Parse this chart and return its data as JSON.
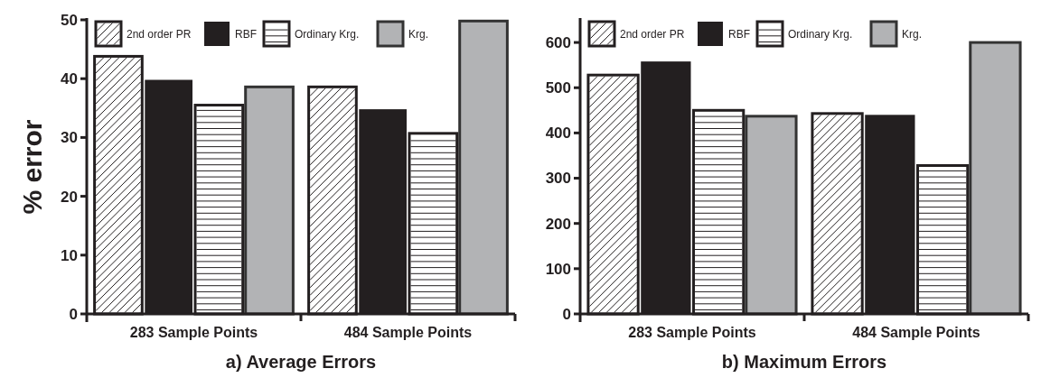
{
  "chart_data": [
    {
      "type": "bar",
      "title": "a) Average Errors",
      "ylabel": "% error",
      "categories": [
        "283 Sample Points",
        "484 Sample Points"
      ],
      "ylim": [
        0,
        50
      ],
      "yticks": [
        0,
        10,
        20,
        30,
        40,
        50
      ],
      "legend": "top",
      "grid": false,
      "series": [
        {
          "name": "2nd order PR",
          "color": "#ffffff",
          "values": [
            43.8,
            38.6
          ]
        },
        {
          "name": "RBF",
          "color": "#231f20",
          "values": [
            39.8,
            34.8
          ]
        },
        {
          "name": "Ordinary Krg.",
          "color": "#ffffff",
          "values": [
            35.5,
            30.7
          ]
        },
        {
          "name": "Krg.",
          "color": "#b2b3b5",
          "values": [
            38.6,
            49.8
          ]
        }
      ]
    },
    {
      "type": "bar",
      "title": "b) Maximum Errors",
      "categories": [
        "283 Sample Points",
        "484 Sample Points"
      ],
      "ylim": [
        0,
        650
      ],
      "yticks": [
        0,
        100,
        200,
        300,
        400,
        500,
        600
      ],
      "legend": "top",
      "grid": false,
      "series": [
        {
          "name": "2nd order PR",
          "color": "#ffffff",
          "values": [
            528,
            443
          ]
        },
        {
          "name": "RBF",
          "color": "#231f20",
          "values": [
            558,
            440
          ]
        },
        {
          "name": "Ordinary Krg.",
          "color": "#ffffff",
          "values": [
            450,
            328
          ]
        },
        {
          "name": "Krg.",
          "color": "#b2b3b5",
          "values": [
            437,
            600
          ]
        }
      ]
    }
  ]
}
